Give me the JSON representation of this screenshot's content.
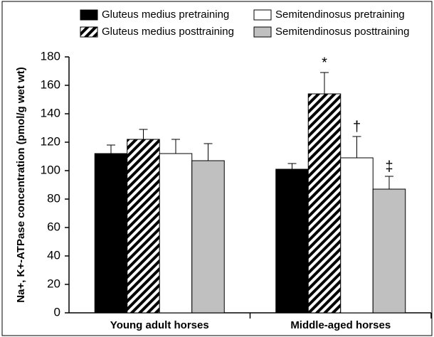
{
  "chart_data": {
    "type": "bar",
    "y_label": "Na+, K+-ATPase concentration (pmol/g wet wt)",
    "categories": [
      "Young adult horses",
      "Middle-aged horses"
    ],
    "series": [
      {
        "name": "Gluteus medius pretraining",
        "color": "#000000",
        "pattern": "solid",
        "values": [
          112,
          101
        ],
        "errors": [
          6,
          4
        ],
        "annotations": [
          null,
          null
        ]
      },
      {
        "name": "Gluteus medius posttraining",
        "color": "#000000",
        "pattern": "hatch",
        "values": [
          122,
          154
        ],
        "errors": [
          7,
          15
        ],
        "annotations": [
          null,
          "*"
        ]
      },
      {
        "name": "Semitendinosus pretraining",
        "color": "#ffffff",
        "pattern": "solid",
        "values": [
          112,
          109
        ],
        "errors": [
          10,
          15
        ],
        "annotations": [
          null,
          "†"
        ]
      },
      {
        "name": "Semitendinosus posttraining",
        "color": "#c0c0c0",
        "pattern": "solid",
        "values": [
          107,
          87
        ],
        "errors": [
          12,
          9
        ],
        "annotations": [
          null,
          "‡"
        ]
      }
    ],
    "ylim": [
      0,
      180
    ],
    "yticks": [
      0,
      20,
      40,
      60,
      80,
      100,
      120,
      140,
      160,
      180
    ]
  }
}
